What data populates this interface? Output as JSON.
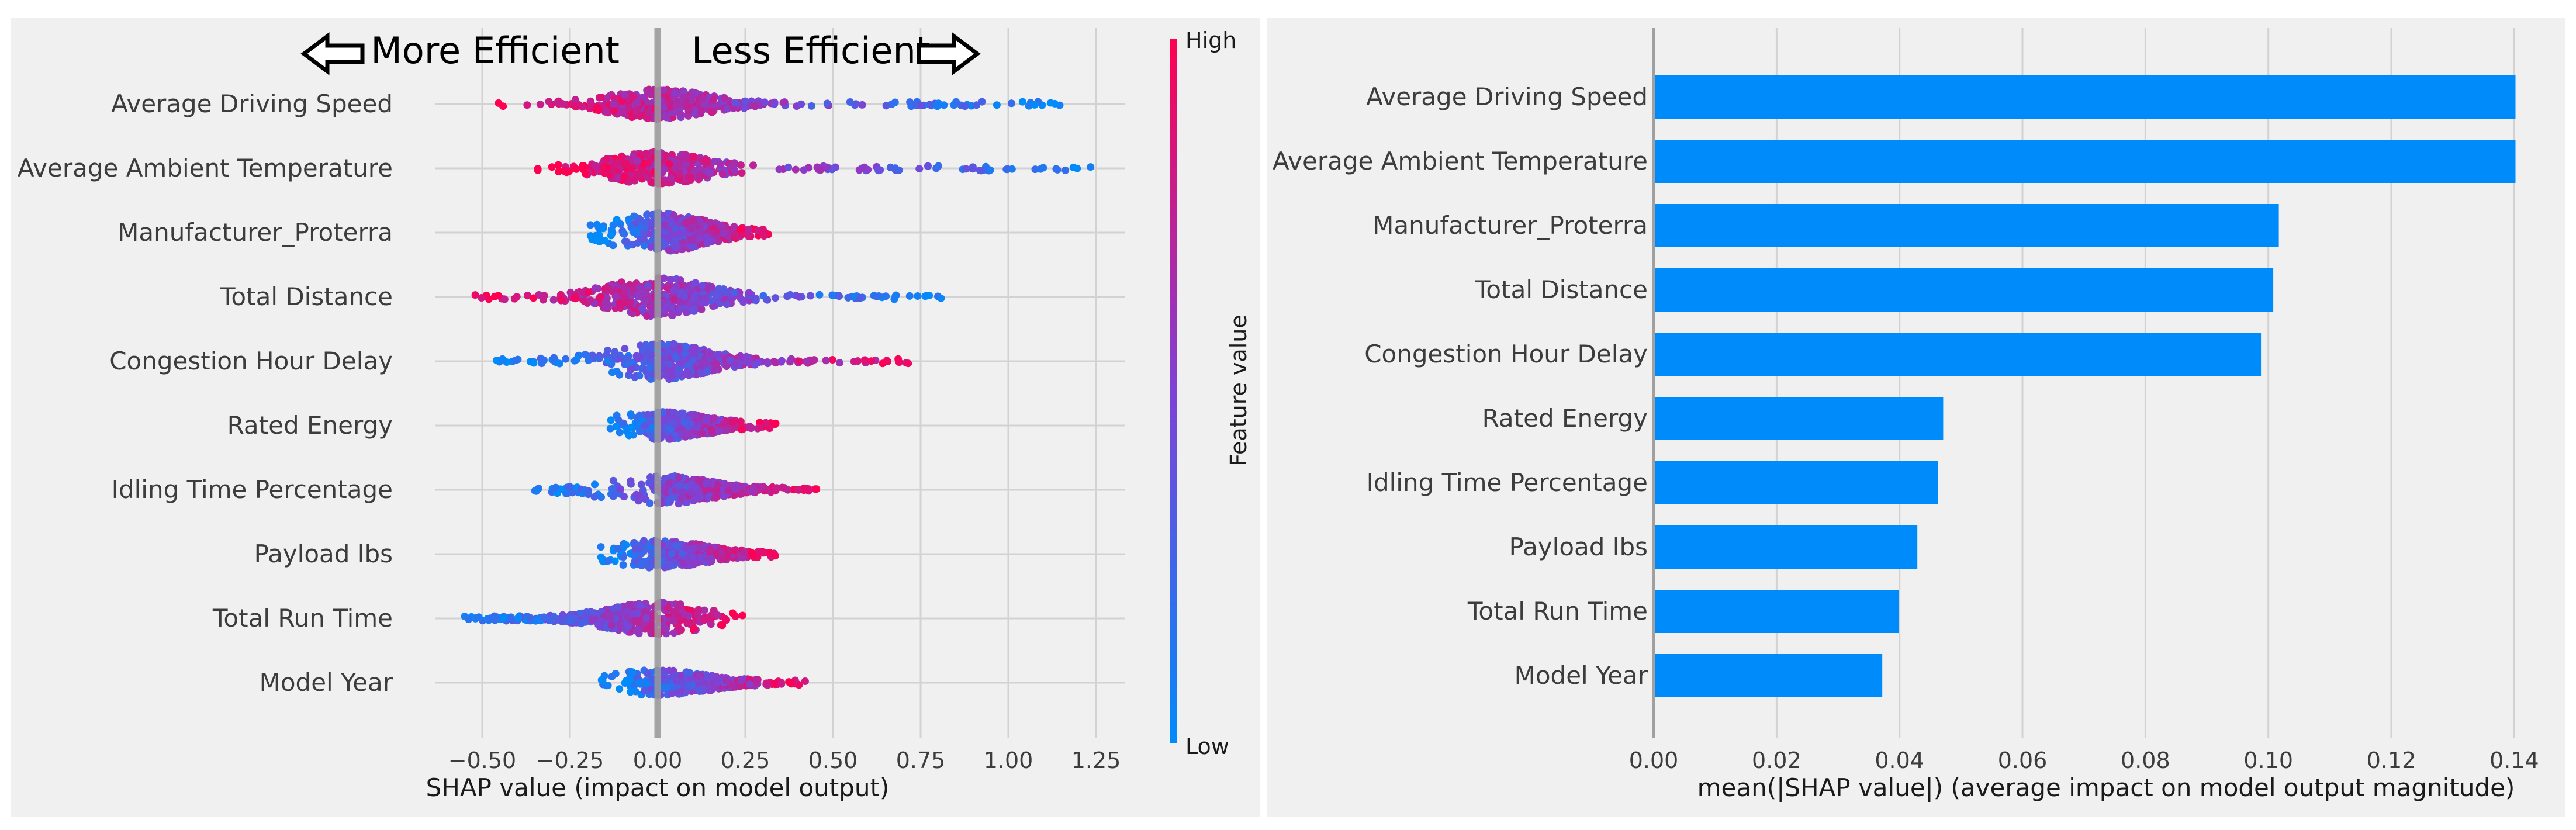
{
  "chart_data": [
    {
      "type": "scatter",
      "subtype": "shap-beeswarm",
      "title": "",
      "annotations": {
        "left": "More Efficient",
        "right": "Less Efficient"
      },
      "xlabel": "SHAP value (impact on model output)",
      "ylabel": "",
      "xlim": [
        -0.62,
        1.33
      ],
      "xticks": [
        "−0.50",
        "−0.25",
        "0.00",
        "0.25",
        "0.50",
        "0.75",
        "1.00",
        "1.25"
      ],
      "xtick_values": [
        -0.5,
        -0.25,
        0,
        0.25,
        0.5,
        0.75,
        1.0,
        1.25
      ],
      "colorbar": {
        "label": "Feature value",
        "high": "High",
        "low": "Low",
        "high_color": "#ff0051",
        "low_color": "#008bfb"
      },
      "features": [
        {
          "name": "Average Driving Speed",
          "min": -0.46,
          "max": 1.15,
          "core": [
            -0.3,
            0.38
          ],
          "width": 22,
          "low_side": "right"
        },
        {
          "name": "Average Ambient Temperature",
          "min": -0.35,
          "max": 1.24,
          "core": [
            -0.32,
            0.3
          ],
          "width": 24,
          "low_side": "right"
        },
        {
          "name": "Manufacturer_Proterra",
          "min": -0.2,
          "max": 0.32,
          "core": [
            -0.14,
            0.3
          ],
          "width": 30,
          "low_side": "left"
        },
        {
          "name": "Total Distance",
          "min": -0.52,
          "max": 0.82,
          "core": [
            -0.35,
            0.35
          ],
          "width": 30,
          "low_side": "right"
        },
        {
          "name": "Congestion Hour Delay",
          "min": -0.46,
          "max": 0.77,
          "core": [
            -0.22,
            0.4
          ],
          "width": 28,
          "low_side": "left"
        },
        {
          "name": "Rated Energy",
          "min": -0.15,
          "max": 0.34,
          "core": [
            -0.1,
            0.28
          ],
          "width": 20,
          "low_side": "left"
        },
        {
          "name": "Idling Time Percentage",
          "min": -0.36,
          "max": 0.48,
          "core": [
            -0.12,
            0.38
          ],
          "width": 22,
          "low_side": "left"
        },
        {
          "name": "Payload lbs",
          "min": -0.17,
          "max": 0.34,
          "core": [
            -0.15,
            0.3
          ],
          "width": 20,
          "low_side": "left"
        },
        {
          "name": "Total Run Time",
          "min": -0.55,
          "max": 0.27,
          "core": [
            -0.45,
            0.25
          ],
          "width": 24,
          "low_side": "left"
        },
        {
          "name": "Model Year",
          "min": -0.16,
          "max": 0.43,
          "core": [
            -0.14,
            0.38
          ],
          "width": 18,
          "low_side": "left"
        }
      ]
    },
    {
      "type": "bar",
      "orientation": "horizontal",
      "title": "",
      "categories": [
        "Average Driving Speed",
        "Average Ambient Temperature",
        "Manufacturer_Proterra",
        "Total Distance",
        "Congestion Hour Delay",
        "Rated Energy",
        "Idling Time Percentage",
        "Payload lbs",
        "Total Run Time",
        "Model Year"
      ],
      "values": [
        0.1402,
        0.1402,
        0.1017,
        0.1008,
        0.0988,
        0.0471,
        0.0463,
        0.0429,
        0.0399,
        0.0372
      ],
      "xlabel": "mean(|SHAP value|) (average impact on model output magnitude)",
      "ylabel": "",
      "xlim": [
        0,
        0.148
      ],
      "xticks": [
        "0.00",
        "0.02",
        "0.04",
        "0.06",
        "0.08",
        "0.10",
        "0.12",
        "0.14"
      ],
      "xtick_values": [
        0,
        0.02,
        0.04,
        0.06,
        0.08,
        0.1,
        0.12,
        0.14
      ],
      "bar_color": "#008bfb"
    }
  ]
}
